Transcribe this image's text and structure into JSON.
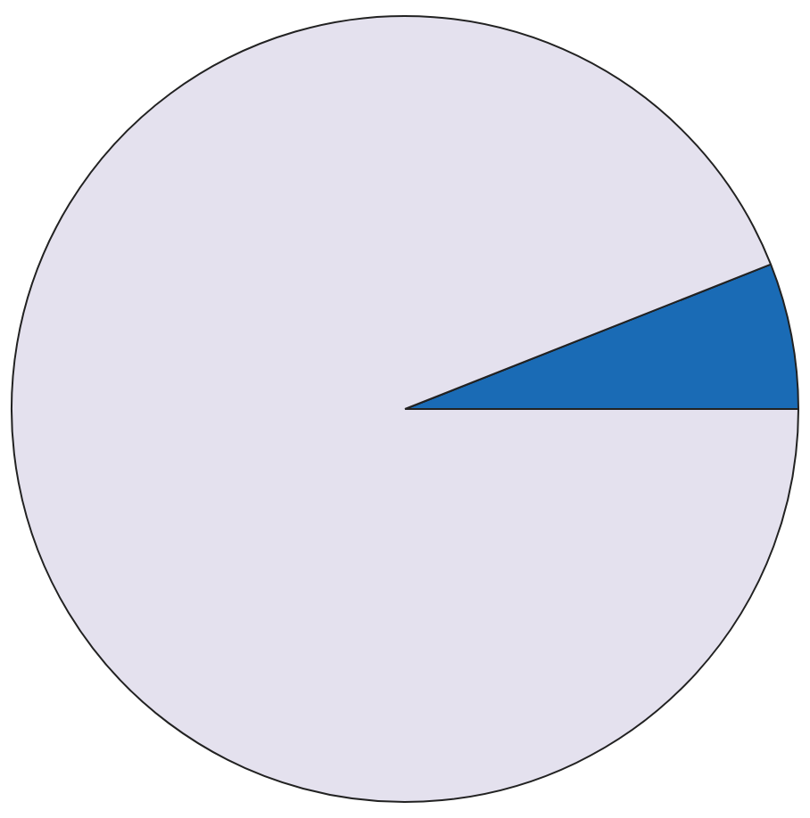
{
  "chart_data": {
    "type": "pie",
    "categories": [
      null,
      null
    ],
    "values": [
      6,
      94
    ],
    "colors": [
      "#1a6bb5",
      "#e4e1ee"
    ],
    "legend": false
  }
}
